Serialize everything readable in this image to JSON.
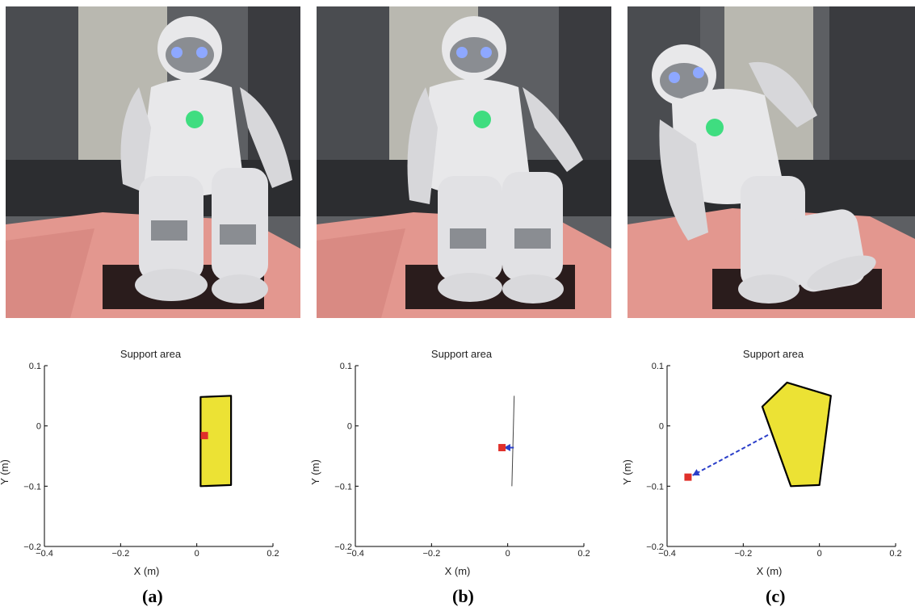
{
  "panels": [
    {
      "label": "(a)"
    },
    {
      "label": "(b)"
    },
    {
      "label": "(c)"
    }
  ],
  "colors": {
    "polygon_fill": "#ece234",
    "cop_marker": "#e0302a",
    "arrow": "#2a3ec9",
    "foam": "#e3978f",
    "robot_white": "#e8e8ea",
    "robot_grey": "#8a8d92",
    "eye_blue": "#8ea8ff",
    "chest_green": "#3fdd80"
  },
  "chart_data": [
    {
      "type": "scatter",
      "title": "Support area",
      "xlabel": "X (m)",
      "ylabel": "Y (m)",
      "xlim": [
        -0.4,
        0.2
      ],
      "ylim": [
        -0.2,
        0.1
      ],
      "xticks": [
        -0.4,
        -0.2,
        0,
        0.2
      ],
      "yticks": [
        -0.2,
        -0.1,
        0,
        0.1
      ],
      "xtick_labels": [
        "−0.4",
        "−0.2",
        "0",
        "0.2"
      ],
      "ytick_labels": [
        "−0.2",
        "−0.1",
        "0",
        "0.1"
      ],
      "support_polygon": [
        [
          0.01,
          0.048
        ],
        [
          0.09,
          0.05
        ],
        [
          0.09,
          -0.098
        ],
        [
          0.01,
          -0.1
        ]
      ],
      "cop": [
        0.02,
        -0.016
      ],
      "arrow": null
    },
    {
      "type": "scatter",
      "title": "Support area",
      "xlabel": "X (m)",
      "ylabel": "Y (m)",
      "xlim": [
        -0.4,
        0.2
      ],
      "ylim": [
        -0.2,
        0.1
      ],
      "xticks": [
        -0.4,
        -0.2,
        0,
        0.2
      ],
      "yticks": [
        -0.2,
        -0.1,
        0,
        0.1
      ],
      "xtick_labels": [
        "−0.4",
        "−0.2",
        "0",
        "0.2"
      ],
      "ytick_labels": [
        "−0.2",
        "−0.1",
        "0",
        "0.1"
      ],
      "support_polygon": [
        [
          0.017,
          0.05
        ],
        [
          0.011,
          -0.1
        ]
      ],
      "cop": [
        -0.015,
        -0.036
      ],
      "arrow": {
        "from": [
          0.016,
          -0.036
        ],
        "to": [
          -0.01,
          -0.036
        ]
      }
    },
    {
      "type": "scatter",
      "title": "Support area",
      "xlabel": "X (m)",
      "ylabel": "Y (m)",
      "xlim": [
        -0.4,
        0.2
      ],
      "ylim": [
        -0.2,
        0.1
      ],
      "xticks": [
        -0.4,
        -0.2,
        0,
        0.2
      ],
      "yticks": [
        -0.2,
        -0.1,
        0,
        0.1
      ],
      "xtick_labels": [
        "−0.4",
        "−0.2",
        "0",
        "0.2"
      ],
      "ytick_labels": [
        "−0.2",
        "−0.1",
        "0",
        "0.1"
      ],
      "support_polygon": [
        [
          -0.085,
          0.072
        ],
        [
          0.03,
          0.05
        ],
        [
          0.0,
          -0.098
        ],
        [
          -0.075,
          -0.1
        ],
        [
          -0.15,
          0.032
        ]
      ],
      "cop": [
        -0.345,
        -0.085
      ],
      "arrow": {
        "from": [
          -0.135,
          -0.015
        ],
        "to": [
          -0.333,
          -0.082
        ]
      }
    }
  ]
}
